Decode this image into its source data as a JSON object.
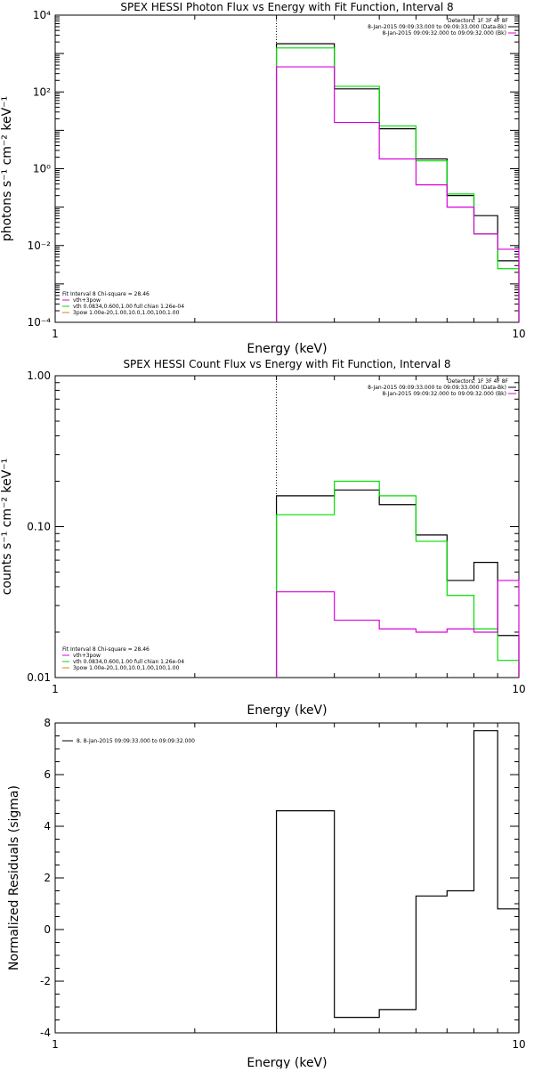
{
  "chart_data": [
    {
      "type": "line",
      "title": "SPEX HESSI Photon Flux vs Energy with Fit Function, Interval 8",
      "xlabel": "Energy (keV)",
      "ylabel": "photons s⁻¹ cm⁻² keV⁻¹",
      "xscale": "log",
      "yscale": "log",
      "xlim": [
        1,
        10
      ],
      "ylim": [
        0.0001,
        10000
      ],
      "x_ticks": [
        {
          "v": 1,
          "label": "1"
        },
        {
          "v": 10,
          "label": "10"
        }
      ],
      "y_ticks": [
        {
          "v": 0.0001,
          "label": "10⁻⁴"
        },
        {
          "v": 0.01,
          "label": "10⁻²"
        },
        {
          "v": 1,
          "label": "10⁰"
        },
        {
          "v": 100,
          "label": "10²"
        },
        {
          "v": 10000,
          "label": "10⁴"
        }
      ],
      "vline_x": 3.0,
      "bin_edges": [
        3.0,
        4.0,
        5.0,
        6.0,
        7.0,
        8.0,
        9.0,
        10.0
      ],
      "series": [
        {
          "color": "#000000",
          "values": [
            1800,
            120,
            11,
            1.8,
            0.2,
            0.06,
            0.004
          ]
        },
        {
          "color": "#00dd00",
          "values": [
            1400,
            140,
            13,
            1.6,
            0.22,
            0.02,
            0.0025
          ]
        },
        {
          "color": "#dd00dd",
          "values": [
            450,
            16,
            1.8,
            0.38,
            0.1,
            0.02,
            0.008
          ]
        }
      ],
      "legend_top": {
        "header": "Detectors: 1F 3F 4F 8F",
        "items": [
          {
            "text": "8-Jan-2015 09:09:33.000 to 09:09:33.000 (Data-Bk)",
            "color": "#000000"
          },
          {
            "text": "8-Jan-2015 09:09:32.000 to 09:09:32.000 (Bk)",
            "color": "#dd00dd"
          }
        ]
      },
      "legend_bottom": {
        "header": "Fit Interval 8   Chi-square = 28.46",
        "items": [
          {
            "text": "vth+3pow",
            "color": "#dd00dd"
          },
          {
            "text": "vth 0.0834,0.600,1.00  full chian 1.26e-04",
            "color": "#00dd00"
          },
          {
            "text": "3pow 1.00e-20,1.00,10.0,1.00,100,1.00",
            "color": "#e08000"
          }
        ]
      }
    },
    {
      "type": "line",
      "title": "SPEX HESSI Count Flux vs Energy with Fit Function, Interval 8",
      "xlabel": "Energy (keV)",
      "ylabel": "counts s⁻¹ cm⁻² keV⁻¹",
      "xscale": "log",
      "yscale": "log",
      "xlim": [
        1,
        10
      ],
      "ylim": [
        0.01,
        1.0
      ],
      "x_ticks": [
        {
          "v": 1,
          "label": "1"
        },
        {
          "v": 10,
          "label": "10"
        }
      ],
      "y_ticks": [
        {
          "v": 0.01,
          "label": "0.01"
        },
        {
          "v": 0.1,
          "label": "0.10"
        },
        {
          "v": 1.0,
          "label": "1.00"
        }
      ],
      "vline_x": 3.0,
      "bin_edges": [
        3.0,
        4.0,
        5.0,
        6.0,
        7.0,
        8.0,
        9.0,
        10.0
      ],
      "series": [
        {
          "color": "#000000",
          "values": [
            0.16,
            0.175,
            0.14,
            0.088,
            0.044,
            0.058,
            0.019
          ]
        },
        {
          "color": "#00dd00",
          "values": [
            0.12,
            0.2,
            0.16,
            0.08,
            0.035,
            0.021,
            0.013
          ]
        },
        {
          "color": "#dd00dd",
          "values": [
            0.037,
            0.024,
            0.021,
            0.02,
            0.021,
            0.02,
            0.044
          ]
        }
      ],
      "legend_top": {
        "header": "Detectors: 1F 3F 4F 8F",
        "items": [
          {
            "text": "8-Jan-2015 09:09:33.000 to 09:09:33.000 (Data-Bk)",
            "color": "#000000"
          },
          {
            "text": "8-Jan-2015 09:09:32.000 to 09:09:32.000 (Bk)",
            "color": "#dd00dd"
          }
        ]
      },
      "legend_bottom": {
        "header": "Fit Interval 8   Chi-square = 28.46",
        "items": [
          {
            "text": "vth+3pow",
            "color": "#dd00dd"
          },
          {
            "text": "vth 0.0834,0.600,1.00  full chian 1.26e-04",
            "color": "#00dd00"
          },
          {
            "text": "3pow 1.00e-20,1.00,10.0,1.00,100,1.00",
            "color": "#e08000"
          }
        ]
      }
    },
    {
      "type": "line",
      "title": "",
      "xlabel": "Energy (keV)",
      "ylabel": "Normalized Residuals (sigma)",
      "xscale": "log",
      "yscale": "linear",
      "xlim": [
        1,
        10
      ],
      "ylim": [
        -4,
        8
      ],
      "x_ticks": [
        {
          "v": 1,
          "label": "1"
        },
        {
          "v": 10,
          "label": "10"
        }
      ],
      "y_ticks": [
        {
          "v": -4,
          "label": "-4"
        },
        {
          "v": -2,
          "label": "-2"
        },
        {
          "v": 0,
          "label": "0"
        },
        {
          "v": 2,
          "label": "2"
        },
        {
          "v": 4,
          "label": "4"
        },
        {
          "v": 6,
          "label": "6"
        },
        {
          "v": 8,
          "label": "8"
        }
      ],
      "bin_edges": [
        3.0,
        4.0,
        5.0,
        6.0,
        7.0,
        8.0,
        9.0,
        10.0
      ],
      "series": [
        {
          "color": "#000000",
          "values": [
            4.6,
            -3.4,
            -3.1,
            1.3,
            1.5,
            7.7,
            0.8
          ]
        }
      ],
      "legend_top": {
        "header": "",
        "items": [
          {
            "text": "8.  8-Jan-2015 09:09:33.000 to 09:09:32.000",
            "color": "#000000"
          }
        ]
      }
    }
  ]
}
